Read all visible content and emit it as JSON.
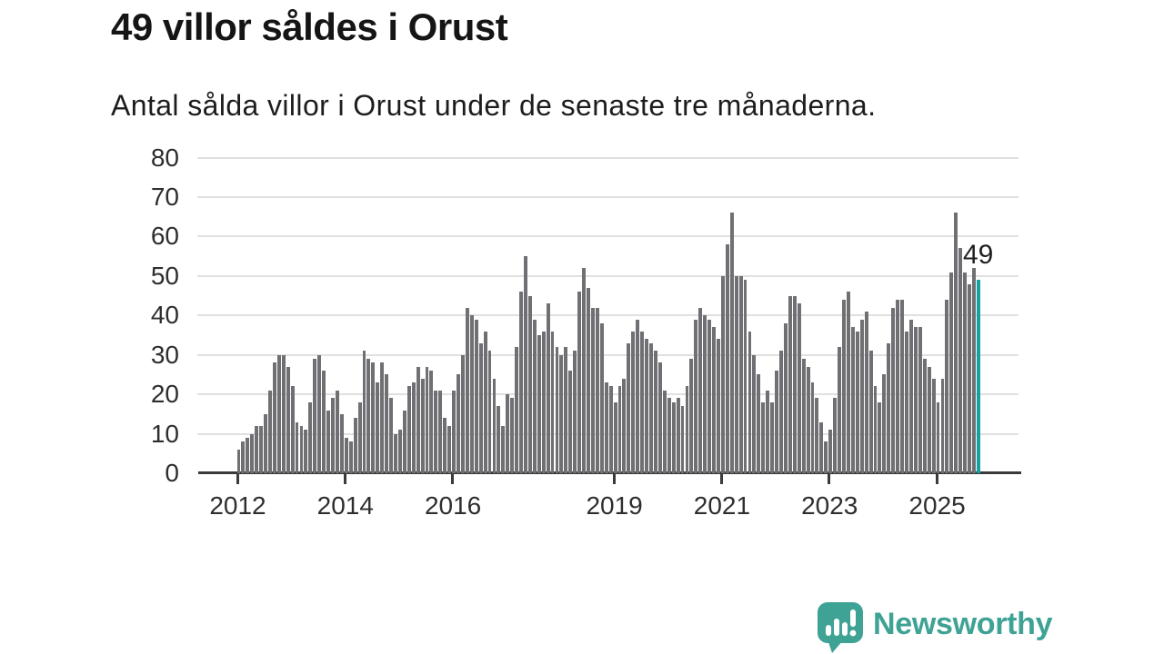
{
  "page": {
    "title": "49 villor såldes i Orust",
    "subtitle": "Antal sålda villor i Orust under de senaste tre månaderna."
  },
  "chart_data": {
    "type": "bar",
    "title": "49 villor såldes i Orust",
    "subtitle": "Antal sålda villor i Orust under de senaste tre månaderna.",
    "description": "Monthly rolling three-month counts of houses sold in Orust, Jan 2012 to autumn 2025; last bar highlighted.",
    "ylim": [
      0,
      80
    ],
    "yticks": [
      0,
      10,
      20,
      30,
      40,
      50,
      60,
      70,
      80
    ],
    "grid": "horizontal",
    "xticks": [
      {
        "label": "2012",
        "index": 0
      },
      {
        "label": "2014",
        "index": 24
      },
      {
        "label": "2016",
        "index": 48
      },
      {
        "label": "2019",
        "index": 84
      },
      {
        "label": "2021",
        "index": 108
      },
      {
        "label": "2023",
        "index": 132
      },
      {
        "label": "2025",
        "index": 156
      }
    ],
    "series": [
      {
        "year": 2012,
        "values": [
          6,
          8,
          9,
          10,
          12,
          12,
          15,
          21,
          28,
          30,
          30,
          27
        ]
      },
      {
        "year": 2013,
        "values": [
          22,
          13,
          12,
          11,
          18,
          29,
          30,
          26,
          16,
          19,
          21,
          15
        ]
      },
      {
        "year": 2014,
        "values": [
          9,
          8,
          14,
          18,
          31,
          29,
          28,
          23,
          28,
          25,
          19,
          10
        ]
      },
      {
        "year": 2015,
        "values": [
          11,
          16,
          22,
          23,
          27,
          24,
          27,
          26,
          21,
          21,
          14,
          12
        ]
      },
      {
        "year": 2016,
        "values": [
          21,
          25,
          30,
          42,
          40,
          39,
          33,
          36,
          31,
          24,
          17,
          12
        ]
      },
      {
        "year": 2017,
        "values": [
          20,
          19,
          32,
          46,
          55,
          45,
          39,
          35,
          36,
          43,
          36,
          32
        ]
      },
      {
        "year": 2018,
        "values": [
          30,
          32,
          26,
          31,
          46,
          52,
          47,
          42,
          42,
          38,
          23,
          22
        ]
      },
      {
        "year": 2019,
        "values": [
          18,
          22,
          24,
          33,
          36,
          39,
          36,
          34,
          33,
          31,
          28,
          21
        ]
      },
      {
        "year": 2020,
        "values": [
          19,
          18,
          19,
          17,
          22,
          29,
          39,
          42,
          40,
          39,
          37,
          34
        ]
      },
      {
        "year": 2021,
        "values": [
          50,
          58,
          66,
          50,
          50,
          49,
          36,
          30,
          25,
          18,
          21,
          18
        ]
      },
      {
        "year": 2022,
        "values": [
          26,
          31,
          38,
          45,
          45,
          43,
          29,
          27,
          23,
          19,
          13,
          8
        ]
      },
      {
        "year": 2023,
        "values": [
          11,
          19,
          32,
          44,
          46,
          37,
          36,
          39,
          41,
          31,
          22,
          18
        ]
      },
      {
        "year": 2024,
        "values": [
          25,
          33,
          42,
          44,
          44,
          36,
          39,
          37,
          37,
          29,
          27,
          24
        ]
      },
      {
        "year": 2025,
        "values": [
          18,
          24,
          44,
          51,
          66,
          57,
          51,
          48,
          52,
          49
        ]
      }
    ],
    "highlight": {
      "position": "last",
      "value": 49,
      "label": "49",
      "color": "#14a3a0"
    },
    "bar_color": "#707074",
    "grid_color": "#e0e0e0",
    "axis_color": "#3a3a3a",
    "legend": null
  },
  "footer": {
    "brand": "Newsworthy",
    "brand_color": "#3ea294",
    "logo_icon": "speech-bubble-bar-chart-icon"
  }
}
